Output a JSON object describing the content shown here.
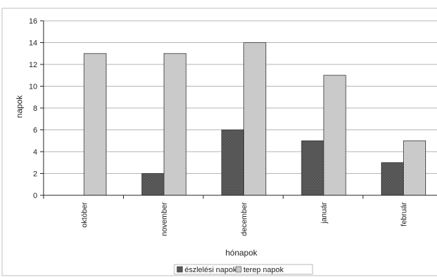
{
  "chart_data": {
    "type": "bar",
    "categories": [
      "október",
      "november",
      "december",
      "január",
      "február"
    ],
    "series": [
      {
        "name": "észlelési napok",
        "values": [
          0,
          2,
          6,
          5,
          3
        ],
        "color": "#5e5e5e"
      },
      {
        "name": "terep napok",
        "values": [
          13,
          13,
          14,
          11,
          5
        ],
        "color": "#cdcdcd"
      }
    ],
    "xlabel": "hónapok",
    "ylabel": "napok",
    "ylim": [
      0,
      16
    ],
    "yticks": [
      0,
      2,
      4,
      6,
      8,
      10,
      12,
      14,
      16
    ],
    "grid": true,
    "legend_position": "bottom-center"
  }
}
